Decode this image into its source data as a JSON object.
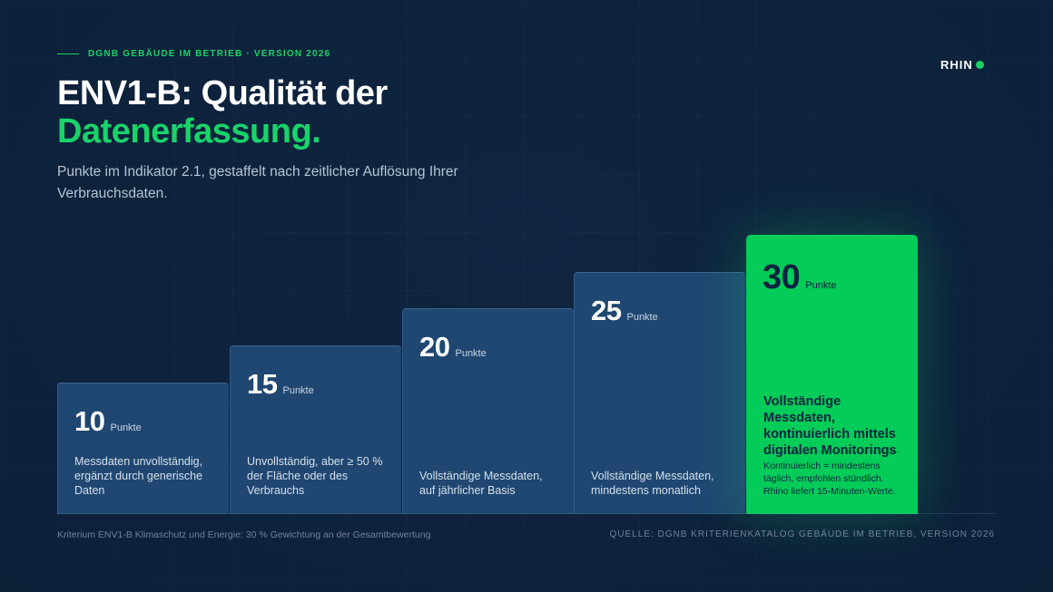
{
  "eyebrow": "DGNB GEBÄUDE IM BETRIEB · VERSION 2026",
  "logo": {
    "text": "RHIN"
  },
  "title": {
    "line1": "ENV1-B: Qualität der",
    "line2": "Datenerfassung."
  },
  "subtitle": "Punkte im Indikator 2.1, gestaffelt nach zeitlicher Auflösung Ihrer Verbrauchsdaten.",
  "chart_data": {
    "type": "bar",
    "categories": [
      "Messdaten unvollständig, ergänzt durch generische Daten",
      "Unvollständig, aber ≥ 50 % der Fläche oder des Verbrauchs",
      "Vollständige Messdaten, auf jährlicher Basis",
      "Vollständige Messdaten, mindestens monatlich",
      "Vollständige Messdaten, kontinuierlich mittels digitalen Monitorings"
    ],
    "values": [
      10,
      15,
      20,
      25,
      30
    ],
    "unit": "Punkte",
    "ylim": [
      0,
      30
    ],
    "highlight_index": 4,
    "highlight_note": "Kontinuierlich = mindestens täglich, empfohlen stündlich. Rhino liefert 15-Minuten-Werte.",
    "grid": false
  },
  "colors": {
    "background": "#0f2540",
    "accent": "#19d36a",
    "bar": "#1f4771",
    "highlight_bar": "#03cc58",
    "highlight_text": "#0c2440"
  },
  "footer": {
    "left": "Kriterium ENV1-B Klimaschutz und Energie: 30 % Gewichtung an der Gesamtbewertung",
    "right": "QUELLE: DGNB KRITERIENKATALOG GEBÄUDE IM BETRIEB, VERSION 2026"
  }
}
